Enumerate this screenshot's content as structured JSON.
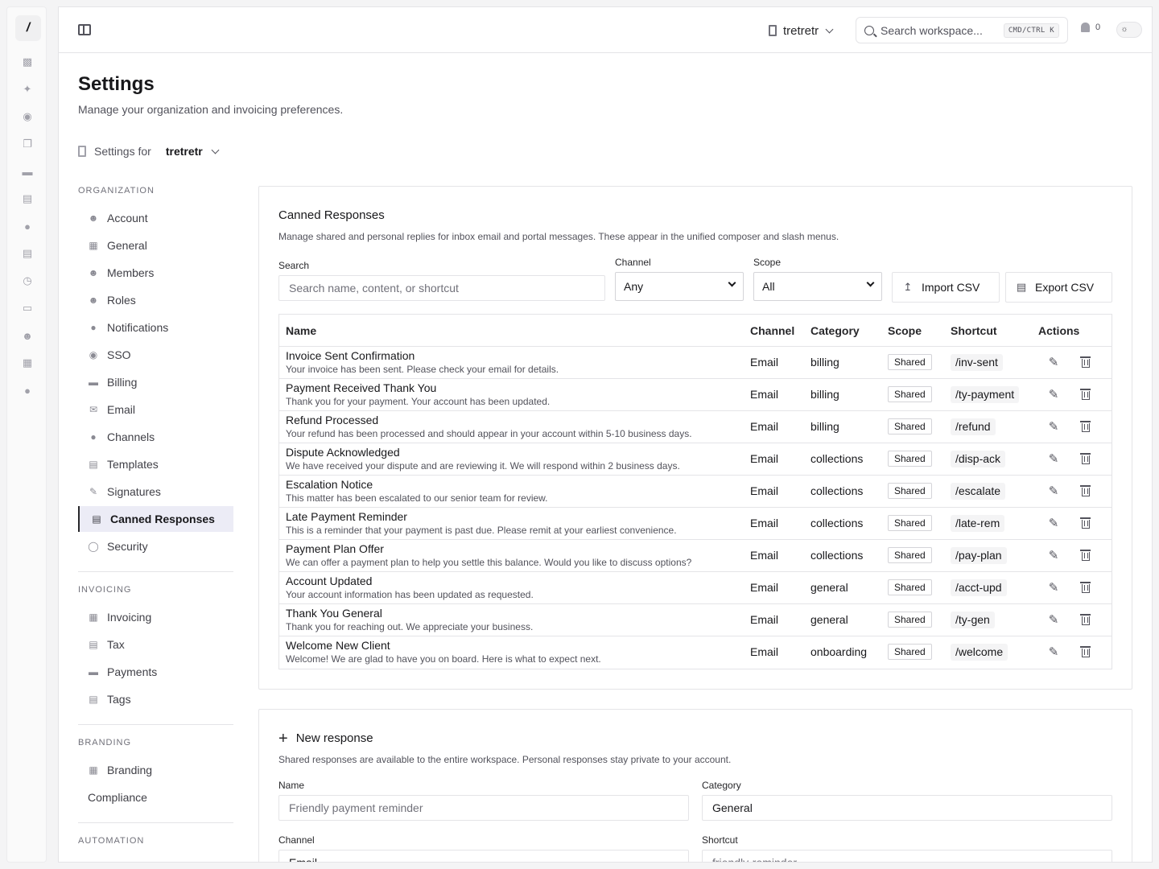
{
  "rail": {
    "logo": "/",
    "icons": [
      "inbox-icon",
      "wand-icon",
      "palette-icon",
      "copy-icon",
      "card-icon",
      "document-icon",
      "bell-icon",
      "invoice-icon",
      "clock-icon",
      "folder-icon",
      "users-icon",
      "calendar-icon",
      "alert-icon"
    ]
  },
  "topbar": {
    "org_name": "tretretr",
    "search_placeholder": "Search workspace...",
    "shortcut": "CMD/CTRL K",
    "notification_count": "0"
  },
  "page": {
    "title": "Settings",
    "subtitle": "Manage your organization and invoicing preferences.",
    "settings_for_label": "Settings for",
    "settings_for_org": "tretretr"
  },
  "nav": {
    "organization_heading": "ORGANIZATION",
    "organization_items": [
      {
        "label": "Account",
        "icon": "user-gear-icon"
      },
      {
        "label": "General",
        "icon": "building-icon"
      },
      {
        "label": "Members",
        "icon": "members-icon"
      },
      {
        "label": "Roles",
        "icon": "roles-icon"
      },
      {
        "label": "Notifications",
        "icon": "bell-icon"
      },
      {
        "label": "SSO",
        "icon": "sso-icon"
      },
      {
        "label": "Billing",
        "icon": "credit-card-icon"
      },
      {
        "label": "Email",
        "icon": "mail-icon"
      },
      {
        "label": "Channels",
        "icon": "channels-icon"
      },
      {
        "label": "Templates",
        "icon": "templates-icon"
      },
      {
        "label": "Signatures",
        "icon": "signature-icon"
      },
      {
        "label": "Canned Responses",
        "icon": "canned-responses-icon"
      },
      {
        "label": "Security",
        "icon": "fingerprint-icon"
      }
    ],
    "invoicing_heading": "INVOICING",
    "invoicing_items": [
      {
        "label": "Invoicing",
        "icon": "invoice-icon"
      },
      {
        "label": "Tax",
        "icon": "tax-icon"
      },
      {
        "label": "Payments",
        "icon": "wallet-icon"
      },
      {
        "label": "Tags",
        "icon": "tag-icon"
      }
    ],
    "branding_heading": "BRANDING",
    "branding_items": [
      {
        "label": "Branding",
        "icon": "image-icon"
      },
      {
        "label": "Compliance",
        "icon": ""
      }
    ],
    "automation_heading": "AUTOMATION",
    "active": "Canned Responses"
  },
  "canned": {
    "title": "Canned Responses",
    "description": "Manage shared and personal replies for inbox email and portal messages. These appear in the unified composer and slash menus.",
    "search_label": "Search",
    "search_placeholder": "Search name, content, or shortcut",
    "channel_label": "Channel",
    "channel_value": "Any",
    "scope_label": "Scope",
    "scope_value": "All",
    "import_label": "Import CSV",
    "export_label": "Export CSV",
    "columns": [
      "Name",
      "Channel",
      "Category",
      "Scope",
      "Shortcut",
      "Actions"
    ],
    "rows": [
      {
        "name": "Invoice Sent Confirmation",
        "content": "Your invoice has been sent. Please check your email for details.",
        "channel": "Email",
        "category": "billing",
        "scope": "Shared",
        "shortcut": "/inv-sent"
      },
      {
        "name": "Payment Received Thank You",
        "content": "Thank you for your payment. Your account has been updated.",
        "channel": "Email",
        "category": "billing",
        "scope": "Shared",
        "shortcut": "/ty-payment"
      },
      {
        "name": "Refund Processed",
        "content": "Your refund has been processed and should appear in your account within 5-10 business days.",
        "channel": "Email",
        "category": "billing",
        "scope": "Shared",
        "shortcut": "/refund"
      },
      {
        "name": "Dispute Acknowledged",
        "content": "We have received your dispute and are reviewing it. We will respond within 2 business days.",
        "channel": "Email",
        "category": "collections",
        "scope": "Shared",
        "shortcut": "/disp-ack"
      },
      {
        "name": "Escalation Notice",
        "content": "This matter has been escalated to our senior team for review.",
        "channel": "Email",
        "category": "collections",
        "scope": "Shared",
        "shortcut": "/escalate"
      },
      {
        "name": "Late Payment Reminder",
        "content": "This is a reminder that your payment is past due. Please remit at your earliest convenience.",
        "channel": "Email",
        "category": "collections",
        "scope": "Shared",
        "shortcut": "/late-rem"
      },
      {
        "name": "Payment Plan Offer",
        "content": "We can offer a payment plan to help you settle this balance. Would you like to discuss options?",
        "channel": "Email",
        "category": "collections",
        "scope": "Shared",
        "shortcut": "/pay-plan"
      },
      {
        "name": "Account Updated",
        "content": "Your account information has been updated as requested.",
        "channel": "Email",
        "category": "general",
        "scope": "Shared",
        "shortcut": "/acct-upd"
      },
      {
        "name": "Thank You General",
        "content": "Thank you for reaching out. We appreciate your business.",
        "channel": "Email",
        "category": "general",
        "scope": "Shared",
        "shortcut": "/ty-gen"
      },
      {
        "name": "Welcome New Client",
        "content": "Welcome! We are glad to have you on board. Here is what to expect next.",
        "channel": "Email",
        "category": "onboarding",
        "scope": "Shared",
        "shortcut": "/welcome"
      }
    ]
  },
  "new_response": {
    "title": "New response",
    "description": "Shared responses are available to the entire workspace. Personal responses stay private to your account.",
    "name_label": "Name",
    "name_placeholder": "Friendly payment reminder",
    "category_label": "Category",
    "category_value": "General",
    "channel_label": "Channel",
    "channel_value": "Email",
    "shortcut_label": "Shortcut",
    "shortcut_placeholder": "friendly-reminder"
  }
}
